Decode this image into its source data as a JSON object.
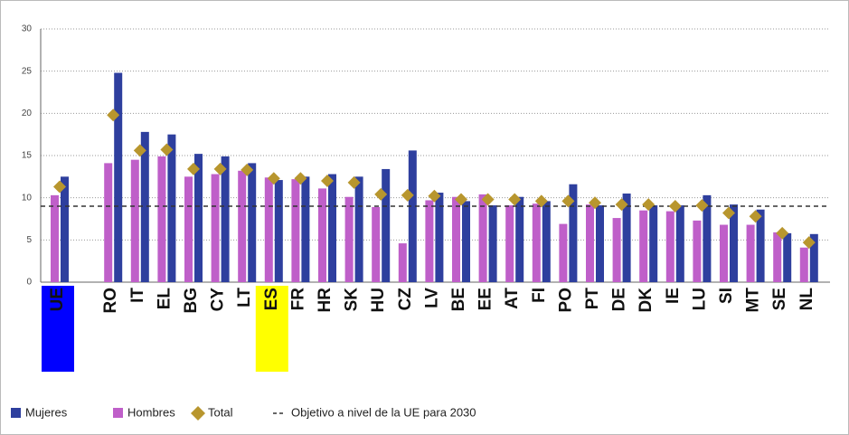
{
  "chart_data": {
    "type": "bar",
    "categories": [
      "UE",
      "RO",
      "IT",
      "EL",
      "BG",
      "CY",
      "LT",
      "ES",
      "FR",
      "HR",
      "SK",
      "HU",
      "CZ",
      "LV",
      "BE",
      "EE",
      "AT",
      "FI",
      "PO",
      "PT",
      "DE",
      "DK",
      "IE",
      "LU",
      "SI",
      "MT",
      "SE",
      "NL"
    ],
    "series": [
      {
        "name": "Mujeres",
        "color": "#2e3f9e",
        "values": [
          12.5,
          24.8,
          17.8,
          17.5,
          15.2,
          14.9,
          14.1,
          12.1,
          12.5,
          12.8,
          12.5,
          13.4,
          15.6,
          10.6,
          9.6,
          9.1,
          10.1,
          9.6,
          11.6,
          9.1,
          10.5,
          9.1,
          9.1,
          10.3,
          9.2,
          8.6,
          5.8,
          5.7
        ]
      },
      {
        "name": "Hombres",
        "color": "#bf5fc9",
        "values": [
          10.3,
          14.1,
          14.5,
          14.9,
          12.5,
          12.8,
          13.2,
          12.4,
          12.2,
          11.1,
          10.1,
          8.9,
          4.6,
          9.7,
          10.1,
          10.4,
          9.1,
          9.3,
          6.9,
          9.2,
          7.6,
          8.5,
          8.4,
          7.3,
          6.8,
          6.8,
          5.9,
          4.1
        ]
      },
      {
        "name": "Total",
        "color": "#b8962e",
        "marker": "diamond",
        "values": [
          11.3,
          19.8,
          15.6,
          15.7,
          13.4,
          13.4,
          13.3,
          12.3,
          12.3,
          12.0,
          11.8,
          10.4,
          10.3,
          10.2,
          9.8,
          9.8,
          9.8,
          9.6,
          9.6,
          9.4,
          9.2,
          9.2,
          9.0,
          9.1,
          8.2,
          7.8,
          5.8,
          4.7
        ]
      }
    ],
    "target": {
      "value": 9,
      "label": "Objetivo a nivel de la UE para 2030"
    },
    "highlights": [
      {
        "category": 0,
        "color": "#0000ff",
        "text_color": "#ffffff"
      },
      {
        "category": 7,
        "color": "#ffff00",
        "text_color": "#111111"
      }
    ],
    "ylim": [
      0,
      30
    ],
    "yticks": [
      0,
      5,
      10,
      15,
      20,
      25,
      30
    ],
    "grid": true
  }
}
